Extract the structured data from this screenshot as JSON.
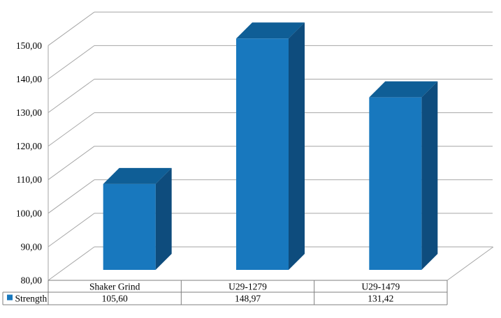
{
  "chart_data": {
    "type": "bar",
    "projection": "3d",
    "title": "",
    "xlabel": "",
    "ylabel": "",
    "categories": [
      "Shaker Grind",
      "U29-1279",
      "U29-1479"
    ],
    "series": [
      {
        "name": "Strength",
        "values": [
          105.6,
          148.97,
          131.42
        ],
        "value_labels": [
          "105,60",
          "148,97",
          "131,42"
        ]
      }
    ],
    "ylim": [
      80,
      150
    ],
    "ytick_step": 10,
    "ytick_labels": [
      "80,00",
      "90,00",
      "100,00",
      "110,00",
      "120,00",
      "130,00",
      "140,00",
      "150,00"
    ],
    "grid": true,
    "data_table_shown": true,
    "legend": {
      "label": "Strength",
      "position": "bottom-left-table",
      "swatch_color": "#1878BE"
    },
    "colors": {
      "bar_front": "#1878BE",
      "bar_top": "#0F5E96",
      "bar_side": "#0E4C7D",
      "gridline": "#A6A6A6",
      "border": "#7F7F7F",
      "text": "#000000",
      "background": "#FFFFFF"
    }
  }
}
